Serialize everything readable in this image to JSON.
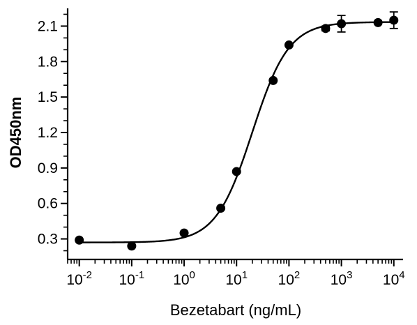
{
  "chart_data": {
    "type": "scatter",
    "title": "",
    "xlabel": "Bezetabart (ng/mL)",
    "ylabel": "OD450nm",
    "xscale": "log",
    "xlim": [
      0.006,
      15000
    ],
    "ylim": [
      0.15,
      2.25
    ],
    "grid": false,
    "legend": "none",
    "x_tick_labels": [
      {
        "base": "10",
        "exp": "-2",
        "value": 0.01
      },
      {
        "base": "10",
        "exp": "-1",
        "value": 0.1
      },
      {
        "base": "10",
        "exp": "0",
        "value": 1
      },
      {
        "base": "10",
        "exp": "1",
        "value": 10
      },
      {
        "base": "10",
        "exp": "2",
        "value": 100
      },
      {
        "base": "10",
        "exp": "3",
        "value": 1000
      },
      {
        "base": "10",
        "exp": "4",
        "value": 10000
      }
    ],
    "y_tick_labels": [
      "0.3",
      "0.6",
      "0.9",
      "1.2",
      "1.5",
      "1.8",
      "2.1"
    ],
    "y_tick_values": [
      0.3,
      0.6,
      0.9,
      1.2,
      1.5,
      1.8,
      2.1
    ],
    "points": [
      {
        "x": 0.01,
        "y": 0.29,
        "err": 0
      },
      {
        "x": 0.1,
        "y": 0.24,
        "err": 0
      },
      {
        "x": 1,
        "y": 0.35,
        "err": 0
      },
      {
        "x": 5,
        "y": 0.56,
        "err": 0
      },
      {
        "x": 10,
        "y": 0.87,
        "err": 0
      },
      {
        "x": 50,
        "y": 1.64,
        "err": 0
      },
      {
        "x": 100,
        "y": 1.94,
        "err": 0
      },
      {
        "x": 500,
        "y": 2.08,
        "err": 0.02
      },
      {
        "x": 1000,
        "y": 2.12,
        "err": 0.07
      },
      {
        "x": 5000,
        "y": 2.13,
        "err": 0
      },
      {
        "x": 10000,
        "y": 2.15,
        "err": 0.07
      }
    ],
    "fit": {
      "model": "4PL",
      "bottom": 0.27,
      "top": 2.135,
      "ec50": 20,
      "hill": 1.25
    },
    "colors": {
      "points": "#000000",
      "curve": "#000000",
      "axes": "#000000"
    }
  }
}
